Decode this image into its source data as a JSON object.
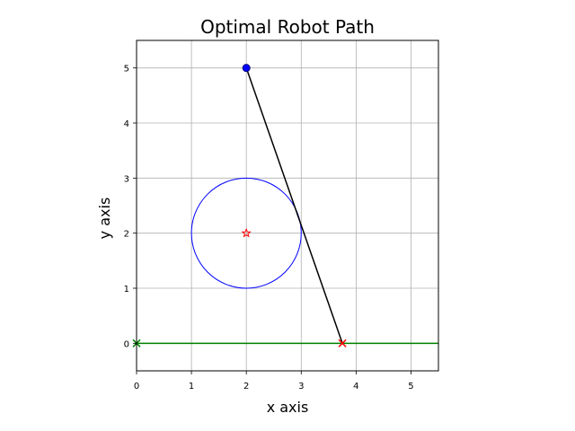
{
  "chart_data": {
    "type": "scatter",
    "title": "Optimal Robot Path",
    "xlabel": "x axis",
    "ylabel": "y axis",
    "xlim": [
      0,
      5.5
    ],
    "ylim": [
      -0.5,
      5.5
    ],
    "xticks": [
      0,
      1,
      2,
      3,
      4,
      5
    ],
    "yticks": [
      0,
      1,
      2,
      3,
      4,
      5
    ],
    "grid": true,
    "elements": {
      "start_point": {
        "x": 2,
        "y": 5,
        "marker": "circle",
        "color": "#0000ff"
      },
      "circle_center": {
        "x": 2,
        "y": 2,
        "marker": "star",
        "color": "#ff0000"
      },
      "circle": {
        "cx": 2,
        "cy": 2,
        "r": 1,
        "color": "#0000ff"
      },
      "path": {
        "points": [
          [
            2,
            5
          ],
          [
            3.75,
            0
          ]
        ],
        "color": "#000000"
      },
      "end_point": {
        "x": 3.75,
        "y": 0,
        "marker": "x",
        "color": "#ff0000"
      },
      "ground_line": {
        "y": 0,
        "x_from": 0,
        "x_to": 5.5,
        "color": "#008000"
      },
      "ground_start_marker": {
        "x": 0,
        "y": 0,
        "marker": "x",
        "color": "#008000"
      }
    }
  }
}
